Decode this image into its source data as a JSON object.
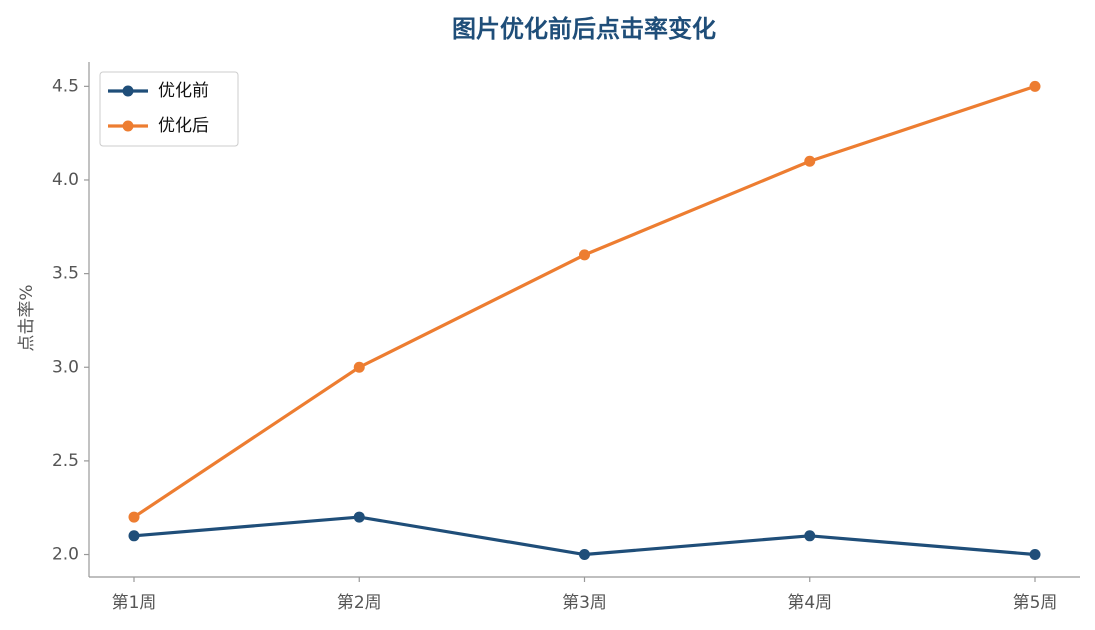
{
  "chart_data": {
    "type": "line",
    "title": "图片优化前后点击率变化",
    "y_label": "点击率%",
    "categories": [
      "第1周",
      "第2周",
      "第3周",
      "第4周",
      "第5周"
    ],
    "series": [
      {
        "name": "优化前",
        "color": "#1f4e79",
        "values": [
          2.1,
          2.2,
          2.0,
          2.1,
          2.0
        ]
      },
      {
        "name": "优化后",
        "color": "#ed7d31",
        "values": [
          2.2,
          3.0,
          3.6,
          4.1,
          4.5
        ]
      }
    ],
    "ylim": [
      1.88,
      4.63
    ],
    "yticks": [
      {
        "value": 2,
        "label": "2.0"
      },
      2.5,
      {
        "value": 3,
        "label": "3.0"
      },
      3.5,
      {
        "value": 4,
        "label": "4.0"
      },
      4.5
    ],
    "legend": "upper-left",
    "grid": false
  }
}
